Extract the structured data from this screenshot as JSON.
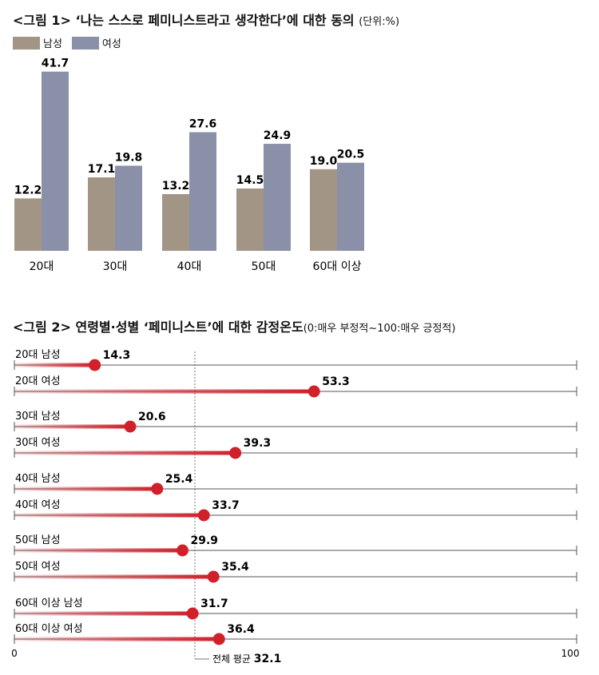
{
  "fig1": {
    "title": "<그림 1> ‘나는 스스로 페미니스트라고 생각한다’에 대한 동의",
    "unit": "(단위:%)"
  },
  "fig2": {
    "title": "<그림 2> 연령별·성별 ‘페미니스트’에 대한 감정온도",
    "subtitle": "(0:매우 부정적~100:매우 긍정적)"
  },
  "colors": {
    "male": "#a39585",
    "female": "#8a90a8",
    "dot": "#d0212b",
    "axis": "#555555"
  },
  "chart_data": [
    {
      "type": "bar",
      "categories": [
        "20대",
        "30대",
        "40대",
        "50대",
        "60대 이상"
      ],
      "series": [
        {
          "name": "남성",
          "values": [
            12.2,
            17.1,
            13.2,
            14.5,
            19.0
          ]
        },
        {
          "name": "여성",
          "values": [
            41.7,
            19.8,
            27.6,
            24.9,
            20.5
          ]
        }
      ],
      "ylim": [
        0,
        45
      ],
      "legend_position": "top-left",
      "grid": false
    },
    {
      "type": "dot",
      "categories": [
        "20대 남성",
        "20대 여성",
        "30대 남성",
        "30대 여성",
        "40대 남성",
        "40대 여성",
        "50대 남성",
        "50대 여성",
        "60대 이상 남성",
        "60대 이상 여성"
      ],
      "values": [
        14.3,
        53.3,
        20.6,
        39.3,
        25.4,
        33.7,
        29.9,
        35.4,
        31.7,
        36.4
      ],
      "xlim": [
        0,
        100
      ],
      "xtick_labels": [
        "0",
        "100"
      ],
      "reference_line": {
        "label": "전체 평균",
        "value": 32.1
      },
      "grid": false
    }
  ]
}
